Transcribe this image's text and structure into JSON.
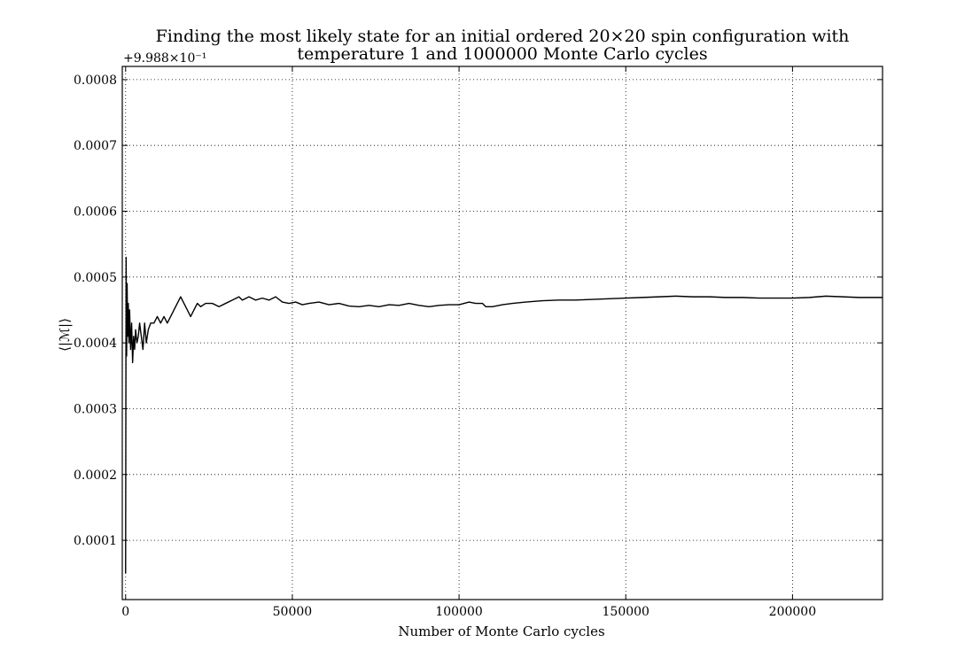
{
  "chart_data": {
    "type": "line",
    "title_line1": "Finding the most likely state for an initial ordered 20×20 spin configuration with",
    "title_line2": "temperature 1 and 1000000 Monte Carlo cycles",
    "xlabel": "Number of Monte Carlo cycles",
    "ylabel": "⟨|ℳ|⟩",
    "y_offset_label": "+9.988×10⁻¹",
    "xlim": [
      -1000,
      227000
    ],
    "ylim": [
      1e-05,
      0.00082
    ],
    "grid": true,
    "x_ticks": [
      {
        "value": 0,
        "label": "0"
      },
      {
        "value": 50000,
        "label": "50000"
      },
      {
        "value": 100000,
        "label": "100000"
      },
      {
        "value": 150000,
        "label": "150000"
      },
      {
        "value": 200000,
        "label": "200000"
      }
    ],
    "y_ticks": [
      {
        "value": 0.0001,
        "label": "0.0001"
      },
      {
        "value": 0.0002,
        "label": "0.0002"
      },
      {
        "value": 0.0003,
        "label": "0.0003"
      },
      {
        "value": 0.0004,
        "label": "0.0004"
      },
      {
        "value": 0.0005,
        "label": "0.0005"
      },
      {
        "value": 0.0006,
        "label": "0.0006"
      },
      {
        "value": 0.0007,
        "label": "0.0007"
      },
      {
        "value": 0.0008,
        "label": "0.0008"
      }
    ],
    "series": [
      {
        "x": [
          0,
          150,
          300,
          450,
          600,
          800,
          1000,
          1200,
          1500,
          1800,
          2100,
          2400,
          2700,
          3000,
          3400,
          3800,
          4200,
          4700,
          5200,
          5700,
          6200,
          6800,
          7500,
          8500,
          9500,
          10500,
          11500,
          12500,
          13500,
          14500,
          15500,
          16500,
          17500,
          18500,
          19500,
          20500,
          21500,
          22500,
          24000,
          26000,
          28000,
          30000,
          32000,
          34000,
          35000,
          37000,
          39000,
          41000,
          43000,
          45000,
          47000,
          49000,
          51000,
          53000,
          55000,
          58000,
          61000,
          64000,
          67000,
          70000,
          73000,
          76000,
          79000,
          82000,
          85000,
          88000,
          91000,
          94000,
          97000,
          100000,
          103000,
          105000,
          107000,
          108000,
          110000,
          113000,
          116000,
          120000,
          125000,
          130000,
          135000,
          140000,
          145000,
          150000,
          155000,
          160000,
          165000,
          170000,
          175000,
          180000,
          185000,
          190000,
          195000,
          200000,
          205000,
          210000,
          215000,
          220000,
          227000
        ],
        "y": [
          5e-05,
          0.00053,
          0.00038,
          0.00049,
          0.00041,
          0.00046,
          0.0004,
          0.00045,
          0.00039,
          0.00043,
          0.00037,
          0.00041,
          0.00039,
          0.00042,
          0.0004,
          0.00041,
          0.00043,
          0.00041,
          0.00039,
          0.00043,
          0.0004,
          0.00042,
          0.00043,
          0.00043,
          0.00044,
          0.00043,
          0.00044,
          0.00043,
          0.00044,
          0.00045,
          0.00046,
          0.00047,
          0.00046,
          0.00045,
          0.00044,
          0.00045,
          0.00046,
          0.000455,
          0.00046,
          0.00046,
          0.000455,
          0.00046,
          0.000465,
          0.00047,
          0.000465,
          0.00047,
          0.000465,
          0.000468,
          0.000465,
          0.00047,
          0.000462,
          0.00046,
          0.000462,
          0.000458,
          0.00046,
          0.000462,
          0.000458,
          0.00046,
          0.000456,
          0.000455,
          0.000457,
          0.000455,
          0.000458,
          0.000457,
          0.00046,
          0.000457,
          0.000455,
          0.000457,
          0.000458,
          0.000458,
          0.000462,
          0.00046,
          0.00046,
          0.000455,
          0.000455,
          0.000458,
          0.00046,
          0.000462,
          0.000464,
          0.000465,
          0.000465,
          0.000466,
          0.000467,
          0.000468,
          0.000469,
          0.00047,
          0.000471,
          0.00047,
          0.00047,
          0.000469,
          0.000469,
          0.000468,
          0.000468,
          0.000468,
          0.000469,
          0.000471,
          0.00047,
          0.000469,
          0.000469
        ]
      }
    ]
  }
}
